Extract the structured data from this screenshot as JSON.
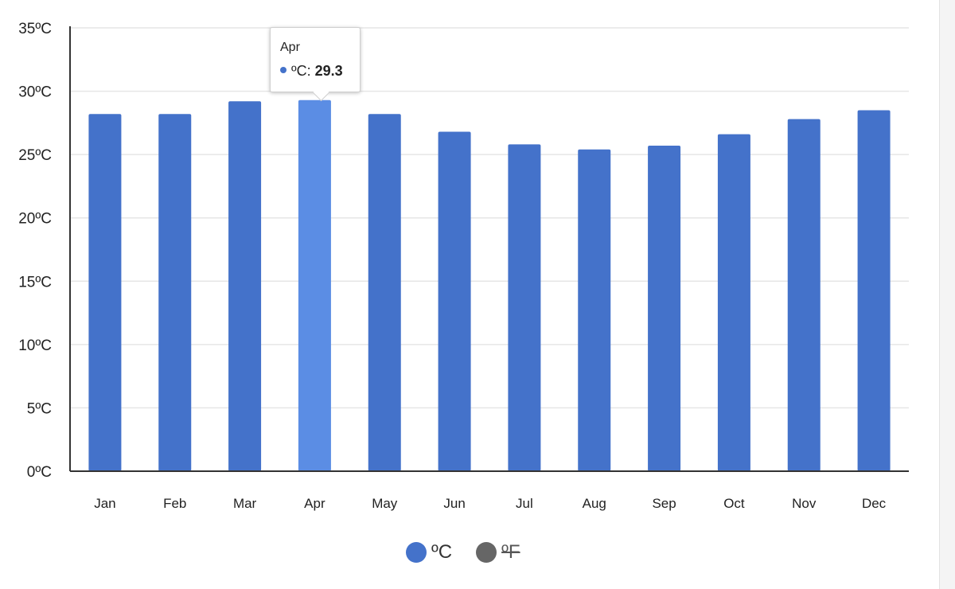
{
  "chart_data": {
    "type": "bar",
    "categories": [
      "Jan",
      "Feb",
      "Mar",
      "Apr",
      "May",
      "Jun",
      "Jul",
      "Aug",
      "Sep",
      "Oct",
      "Nov",
      "Dec"
    ],
    "series": [
      {
        "name": "ºC",
        "values": [
          28.2,
          28.2,
          29.2,
          29.3,
          28.2,
          26.8,
          25.8,
          25.4,
          25.7,
          26.6,
          27.8,
          28.5
        ]
      }
    ],
    "ylim": [
      0,
      35
    ],
    "yticks": [
      0,
      5,
      10,
      15,
      20,
      25,
      30,
      35
    ],
    "ytick_labels": [
      "0ºC",
      "5ºC",
      "10ºC",
      "15ºC",
      "20ºC",
      "25ºC",
      "30ºC",
      "35ºC"
    ],
    "grid": true,
    "highlight_index": 3,
    "colors": {
      "bar": "#4472ca",
      "bar_highlight": "#5b8de4",
      "grid": "#e6e6e6",
      "axis": "#333333"
    }
  },
  "tooltip": {
    "category": "Apr",
    "series_label": "ºC:",
    "value": "29.3"
  },
  "legend": [
    {
      "label": "ºC",
      "color": "#4472ca",
      "active": true
    },
    {
      "label": "ºF",
      "color": "#666666",
      "active": false
    }
  ]
}
